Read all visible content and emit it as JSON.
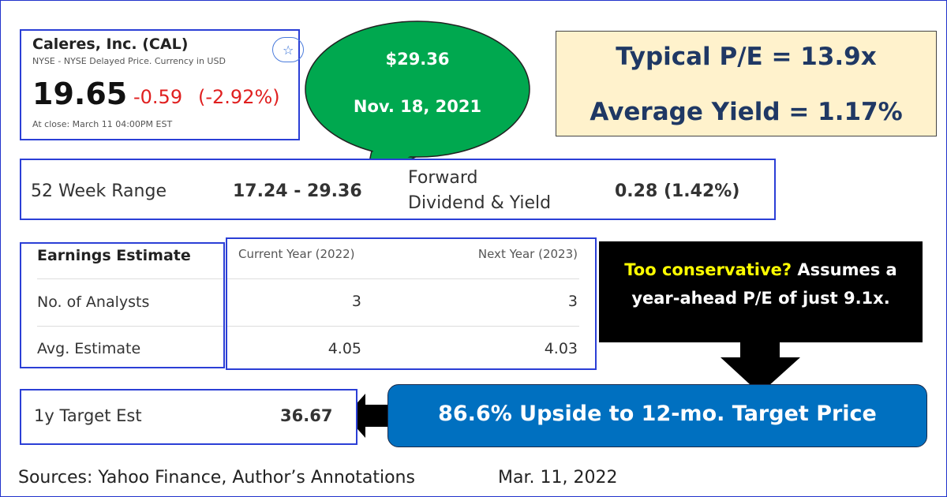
{
  "quote": {
    "name": "Caleres, Inc. (CAL)",
    "exchange": "NYSE - NYSE Delayed Price. Currency in USD",
    "price": "19.65",
    "change": "-0.59",
    "change_pct": "(-2.92%)",
    "close_time": "At close: March 11 04:00PM EST"
  },
  "callout_high": {
    "price": "$29.36",
    "date": "Nov. 18, 2021"
  },
  "valuation": {
    "pe": "Typical P/E = 13.9x",
    "yield": "Average Yield = 1.17%"
  },
  "stats": {
    "range_label": "52 Week Range",
    "range_value": "17.24 - 29.36",
    "dividend_label_1": "Forward",
    "dividend_label_2": "Dividend & Yield",
    "dividend_value": "0.28 (1.42%)"
  },
  "earnings": {
    "header": [
      "Earnings Estimate",
      "Current Year (2022)",
      "Next Year (2023)"
    ],
    "rows": [
      [
        "No. of Analysts",
        "3",
        "3"
      ],
      [
        "Avg. Estimate",
        "4.05",
        "4.03"
      ]
    ]
  },
  "note": {
    "highlight": "Too conservative?",
    "text": "Assumes a year-ahead P/E of just 9.1x."
  },
  "target": {
    "label": "1y Target Est",
    "value": "36.67"
  },
  "upside": "86.6% Upside to 12-mo. Target Price",
  "footer": {
    "sources": "Sources: Yahoo Finance, Author’s Annotations",
    "date": "Mar. 11, 2022"
  }
}
